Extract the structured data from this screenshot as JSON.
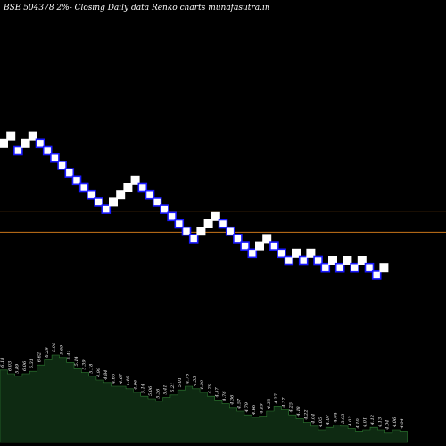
{
  "chart_data": {
    "type": "renko",
    "title": "BSE 504378  2%-  Closing Daily data  Renko  charts munafasutra.in",
    "colors": {
      "background": "#000000",
      "up_brick": "#ffffff",
      "down_brick": "#ffffff",
      "down_brick_border": "#1a1aff",
      "horizontal_line": "#c8751a",
      "volume_fill": "#0e2a12",
      "volume_stroke": "#2e7d32"
    },
    "brick_levels": [
      6,
      7,
      5,
      6,
      7,
      6,
      5,
      4,
      3,
      2,
      1,
      0,
      -1,
      -2,
      -3,
      -2,
      -1,
      0,
      1,
      0,
      -1,
      -2,
      -3,
      -4,
      -5,
      -6,
      -7,
      -6,
      -5,
      -4,
      -5,
      -6,
      -7,
      -8,
      -9,
      -8,
      -7,
      -8,
      -9,
      -10,
      -9,
      -10,
      -9,
      -10,
      -11,
      -10,
      -11,
      -10,
      -11,
      -10,
      -11,
      -12,
      -11
    ],
    "horizontal_levels": [
      -3.25,
      -6.15
    ],
    "volume_values": [
      5.8,
      5.5,
      5.3,
      5.5,
      5.7,
      6.2,
      6.6,
      7.0,
      6.8,
      6.4,
      5.9,
      5.6,
      5.3,
      5.0,
      4.8,
      4.5,
      4.5,
      4.3,
      4.0,
      3.7,
      3.5,
      3.3,
      3.6,
      3.8,
      4.2,
      4.5,
      4.3,
      4.0,
      3.7,
      3.4,
      3.1,
      2.8,
      2.5,
      2.2,
      2.0,
      2.1,
      2.5,
      2.9,
      2.6,
      2.2,
      1.9,
      1.6,
      1.3,
      1.0,
      1.2,
      1.4,
      1.3,
      1.1,
      0.9,
      1.0,
      1.2,
      1.0,
      0.8,
      1.0,
      0.9
    ],
    "volume_labels": [
      "6.18",
      "6.03",
      "5.89",
      "6.06",
      "6.31",
      "6.62",
      "6.29",
      "5.98",
      "5.69",
      "5.41",
      "5.14",
      "5.39",
      "5.18",
      "4.99",
      "4.84",
      "4.63",
      "4.67",
      "4.46",
      "4.96",
      "5.14",
      "5.06",
      "5.36",
      "5.41",
      "5.21",
      "5.01",
      "4.78",
      "4.55",
      "4.39",
      "4.29",
      "4.57",
      "4.76",
      "4.36",
      "4.57",
      "4.79",
      "4.66",
      "4.49",
      "4.33",
      "4.27",
      "4.37",
      "4.25",
      "4.18",
      "4.22",
      "4.04",
      "4.05",
      "4.07",
      "4.04",
      "3.93",
      "4.03",
      "4.10",
      "4.01",
      "4.12",
      "4.13",
      "4.04",
      "4.06",
      "4.04"
    ]
  }
}
